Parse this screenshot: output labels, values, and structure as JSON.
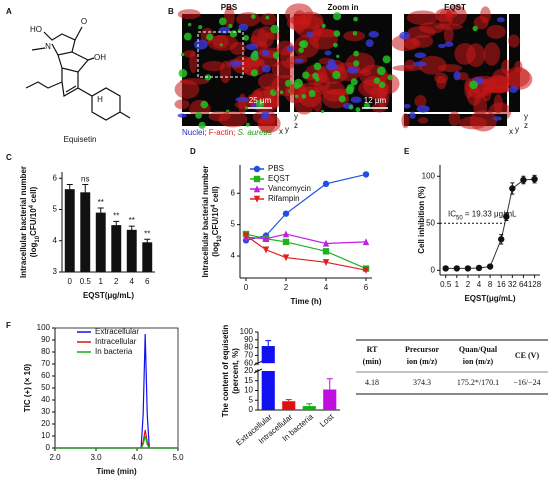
{
  "panel_labels": [
    "A",
    "B",
    "C",
    "D",
    "E",
    "F"
  ],
  "structure": {
    "atoms": [
      "HO",
      "O",
      "N",
      "OH",
      "H"
    ],
    "name": "Equisetin"
  },
  "microscopy": {
    "titles": [
      "PBS",
      "Zoom in",
      "EQST"
    ],
    "scale_bars": [
      "25 μm",
      "12 μm"
    ],
    "axis_letters": [
      "y",
      "z",
      "x"
    ],
    "legend": [
      {
        "text": "Nuclei;",
        "color": "#2a2ad0"
      },
      {
        "text": "F-actin;",
        "color": "#e02020"
      },
      {
        "text": "S. aureus",
        "color": "#1a9a1a"
      }
    ]
  },
  "chart_data": [
    {
      "type": "bar",
      "categories": [
        "0",
        "0.5",
        "1",
        "2",
        "4",
        "6"
      ],
      "values": [
        5.65,
        5.55,
        4.9,
        4.5,
        4.35,
        3.95
      ],
      "errors": [
        0.15,
        0.25,
        0.15,
        0.12,
        0.12,
        0.1
      ],
      "annotations": [
        null,
        "ns",
        "**",
        "**",
        "**",
        "**"
      ],
      "color": "#111111",
      "ylim": [
        3,
        6.2
      ],
      "yticks": [
        3,
        4,
        5,
        6
      ],
      "xlabel": "EQST(μg/mL)",
      "ylabel": [
        [
          {
            "text": "Intracellular bacterial number"
          }
        ],
        [
          {
            "text": "(log"
          },
          {
            "text": "10",
            "shift": "sub"
          },
          {
            "text": "CFU/10"
          },
          {
            "text": "4",
            "shift": "super"
          },
          {
            "text": " cell)"
          }
        ]
      ]
    },
    {
      "type": "line",
      "x": [
        0,
        1,
        2,
        4,
        6
      ],
      "xlim": [
        -0.3,
        6.3
      ],
      "xticks": [
        0,
        2,
        4,
        6
      ],
      "ylim": [
        3.3,
        6.9
      ],
      "yticks": [
        4,
        5,
        6
      ],
      "xlabel": "Time (h)",
      "legend": "upper left",
      "ylabel": [
        [
          {
            "text": "Intracellular bacterial number"
          }
        ],
        [
          {
            "text": "(log"
          },
          {
            "text": "10",
            "shift": "sub"
          },
          {
            "text": "CFU/10"
          },
          {
            "text": "4",
            "shift": "super"
          },
          {
            "text": " cell)"
          }
        ]
      ],
      "series": [
        {
          "name": "PBS",
          "color": "#2050e0",
          "marker": "circle",
          "values": [
            4.5,
            4.65,
            5.35,
            6.3,
            6.6
          ]
        },
        {
          "name": "EQST",
          "color": "#20b020",
          "marker": "square",
          "values": [
            4.7,
            4.55,
            4.45,
            4.15,
            3.6
          ]
        },
        {
          "name": "Vancomycin",
          "color": "#c020e0",
          "marker": "triangle",
          "values": [
            4.6,
            4.55,
            4.7,
            4.4,
            4.45
          ]
        },
        {
          "name": "Rifampin",
          "color": "#e02020",
          "marker": "triangle-down",
          "values": [
            4.65,
            4.2,
            3.95,
            3.8,
            3.55
          ]
        }
      ]
    },
    {
      "type": "scatter",
      "xscale": "log",
      "x": [
        0.5,
        1,
        2,
        4,
        8,
        16,
        22,
        32,
        64,
        128
      ],
      "values": [
        2,
        2,
        2,
        2.5,
        4,
        33,
        57,
        87,
        96,
        97
      ],
      "errors": [
        1,
        1,
        1,
        1,
        1.5,
        5,
        4,
        6,
        4,
        4
      ],
      "color": "#111111",
      "curve": true,
      "hline": 50,
      "xlim": [
        0.35,
        180
      ],
      "xticks": [
        0.5,
        1,
        2,
        4,
        8,
        16,
        32,
        64,
        128
      ],
      "ylim": [
        -5,
        112
      ],
      "yticks": [
        0,
        50,
        100
      ],
      "xlabel": "EQST(μg/mL)",
      "ylabel": [
        [
          {
            "text": "Cell inhibition (%)"
          }
        ]
      ],
      "annotation": [
        {
          "text": "IC"
        },
        {
          "text": "50",
          "shift": "sub"
        },
        {
          "text": " = 19.33 μg/mL"
        }
      ]
    },
    {
      "type": "line",
      "x": [
        2,
        4.1,
        4.15,
        4.2,
        4.25,
        4.3,
        5
      ],
      "xlim": [
        2,
        5
      ],
      "xticks": [
        {
          "value": 2,
          "label": "2.0"
        },
        {
          "value": 3,
          "label": "3.0"
        },
        {
          "value": 4,
          "label": "4.0"
        },
        {
          "value": 5,
          "label": "5.0"
        }
      ],
      "ylim": [
        0,
        100
      ],
      "yticks": [
        0,
        10,
        20,
        30,
        40,
        50,
        60,
        70,
        80,
        90,
        100
      ],
      "frame": true,
      "xlabel": "Time (min)",
      "ylabel": [
        [
          {
            "text": "TIC (+) (× 10)"
          }
        ]
      ],
      "legend": "upper left",
      "series": [
        {
          "name": "Extracellular",
          "color": "#1010f0",
          "values": [
            0,
            0,
            28,
            95,
            28,
            0,
            0
          ]
        },
        {
          "name": "Intracellular",
          "color": "#e01010",
          "values": [
            0,
            0,
            5,
            15,
            5,
            0,
            0
          ]
        },
        {
          "name": "In bacteria",
          "color": "#10b010",
          "values": [
            0,
            0,
            3,
            10,
            3,
            0,
            0
          ]
        }
      ]
    },
    {
      "type": "bar",
      "categories": [
        "Extracellular",
        "Intracellular",
        "In bacteria",
        "Lost"
      ],
      "values": [
        82,
        4.5,
        2,
        10.5
      ],
      "errors": [
        7,
        0.8,
        1.2,
        5.5
      ],
      "colors": [
        "#1010f0",
        "#e01010",
        "#10b010",
        "#c010e0"
      ],
      "rotate_labels": true,
      "ylim": [
        0,
        100
      ],
      "ybreak": [
        20,
        60
      ],
      "yticks": [
        0,
        5,
        10,
        15,
        20,
        60,
        70,
        80,
        90,
        100
      ],
      "ylabel": [
        [
          {
            "text": "The content of equisetin"
          }
        ],
        [
          {
            "text": "(percent, %)"
          }
        ]
      ]
    }
  ],
  "table": {
    "header": [
      [
        "RT",
        "(min)"
      ],
      [
        "Precursor",
        "ion (m/z)"
      ],
      [
        "Quan/Qual",
        "ion (m/z)"
      ],
      [
        "CE (V)"
      ]
    ],
    "rows": [
      [
        "4.18",
        "374.3",
        "175.2*/170.1",
        "−16/−24"
      ]
    ]
  }
}
